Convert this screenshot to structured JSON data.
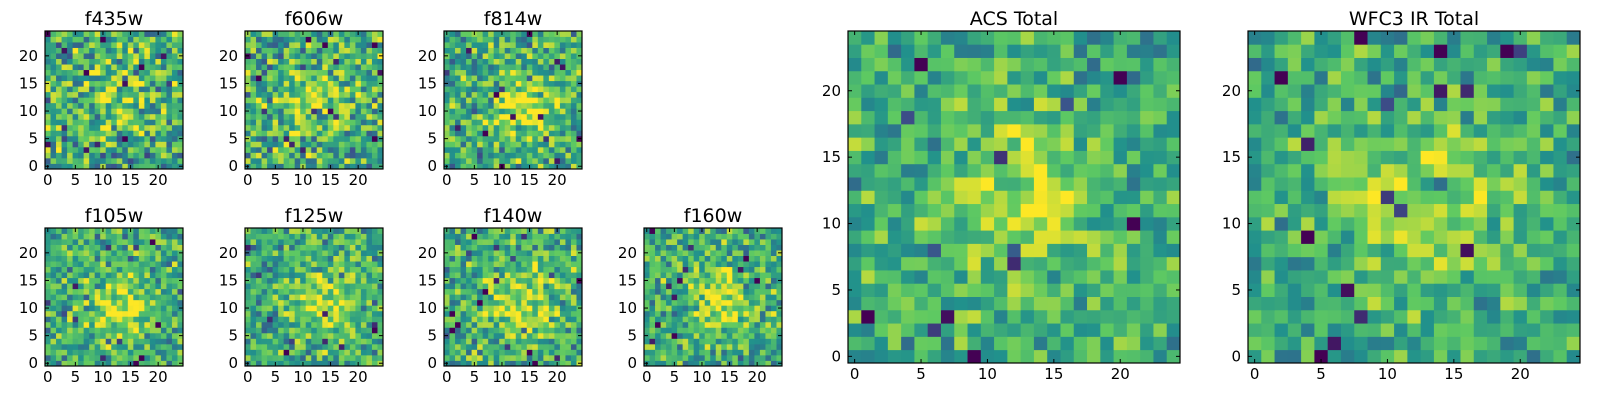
{
  "colors": {
    "colormap": [
      "#440154",
      "#3b528b",
      "#21918c",
      "#5ec962",
      "#fde725"
    ],
    "frame": "#000000",
    "background": "#ffffff"
  },
  "chart_data": [
    {
      "type": "heatmap",
      "title": "f435w",
      "cmap": "viridis",
      "grid": false,
      "xlim": [
        -0.5,
        24.5
      ],
      "ylim": [
        -0.5,
        24.5
      ],
      "x_ticks": [
        0,
        5,
        10,
        15,
        20
      ],
      "y_ticks": [
        0,
        5,
        10,
        15,
        20
      ],
      "nx": 25,
      "ny": 25,
      "noise": 0.62,
      "source": {
        "cx": 13,
        "cy": 13,
        "sigma": 5,
        "amp": 0.45
      },
      "seed": 11
    },
    {
      "type": "heatmap",
      "title": "f606w",
      "cmap": "viridis",
      "grid": false,
      "xlim": [
        -0.5,
        24.5
      ],
      "ylim": [
        -0.5,
        24.5
      ],
      "x_ticks": [
        0,
        5,
        10,
        15,
        20
      ],
      "y_ticks": [
        0,
        5,
        10,
        15,
        20
      ],
      "nx": 25,
      "ny": 25,
      "noise": 0.58,
      "source": {
        "cx": 13,
        "cy": 12,
        "sigma": 5,
        "amp": 0.6
      },
      "seed": 23
    },
    {
      "type": "heatmap",
      "title": "f814w",
      "cmap": "viridis",
      "grid": false,
      "xlim": [
        -0.5,
        24.5
      ],
      "ylim": [
        -0.5,
        24.5
      ],
      "x_ticks": [
        0,
        5,
        10,
        15,
        20
      ],
      "y_ticks": [
        0,
        5,
        10,
        15,
        20
      ],
      "nx": 25,
      "ny": 25,
      "noise": 0.55,
      "source": {
        "cx": 14,
        "cy": 11,
        "sigma": 4,
        "amp": 0.9
      },
      "seed": 37
    },
    {
      "type": "heatmap",
      "title": "f105w",
      "cmap": "viridis",
      "grid": false,
      "xlim": [
        -0.5,
        24.5
      ],
      "ylim": [
        -0.5,
        24.5
      ],
      "x_ticks": [
        0,
        5,
        10,
        15,
        20
      ],
      "y_ticks": [
        0,
        5,
        10,
        15,
        20
      ],
      "nx": 25,
      "ny": 25,
      "noise": 0.5,
      "source": {
        "cx": 14,
        "cy": 10,
        "sigma": 4,
        "amp": 0.9
      },
      "seed": 41
    },
    {
      "type": "heatmap",
      "title": "f125w",
      "cmap": "viridis",
      "grid": false,
      "xlim": [
        -0.5,
        24.5
      ],
      "ylim": [
        -0.5,
        24.5
      ],
      "x_ticks": [
        0,
        5,
        10,
        15,
        20
      ],
      "y_ticks": [
        0,
        5,
        10,
        15,
        20
      ],
      "nx": 25,
      "ny": 25,
      "noise": 0.5,
      "source": {
        "cx": 14,
        "cy": 11,
        "sigma": 4,
        "amp": 0.8
      },
      "seed": 53
    },
    {
      "type": "heatmap",
      "title": "f140w",
      "cmap": "viridis",
      "grid": false,
      "xlim": [
        -0.5,
        24.5
      ],
      "ylim": [
        -0.5,
        24.5
      ],
      "x_ticks": [
        0,
        5,
        10,
        15,
        20
      ],
      "y_ticks": [
        0,
        5,
        10,
        15,
        20
      ],
      "nx": 25,
      "ny": 25,
      "noise": 0.5,
      "source": {
        "cx": 13,
        "cy": 11,
        "sigma": 5,
        "amp": 0.8
      },
      "seed": 67
    },
    {
      "type": "heatmap",
      "title": "f160w",
      "cmap": "viridis",
      "grid": false,
      "xlim": [
        -0.5,
        24.5
      ],
      "ylim": [
        -0.5,
        24.5
      ],
      "x_ticks": [
        0,
        5,
        10,
        15,
        20
      ],
      "y_ticks": [
        0,
        5,
        10,
        15,
        20
      ],
      "nx": 25,
      "ny": 25,
      "noise": 0.5,
      "source": {
        "cx": 14,
        "cy": 11,
        "sigma": 4,
        "amp": 0.85
      },
      "seed": 79
    },
    {
      "type": "heatmap",
      "title": "ACS Total",
      "cmap": "viridis",
      "grid": false,
      "xlim": [
        -0.5,
        24.5
      ],
      "ylim": [
        -0.5,
        24.5
      ],
      "x_ticks": [
        0,
        5,
        10,
        15,
        20
      ],
      "y_ticks": [
        0,
        5,
        10,
        15,
        20
      ],
      "nx": 25,
      "ny": 25,
      "noise": 0.42,
      "source": {
        "cx": 13,
        "cy": 12,
        "sigma": 4,
        "amp": 0.75
      },
      "seed": 97
    },
    {
      "type": "heatmap",
      "title": "WFC3 IR Total",
      "cmap": "viridis",
      "grid": false,
      "xlim": [
        -0.5,
        24.5
      ],
      "ylim": [
        -0.5,
        24.5
      ],
      "x_ticks": [
        0,
        5,
        10,
        15,
        20
      ],
      "y_ticks": [
        0,
        5,
        10,
        15,
        20
      ],
      "nx": 25,
      "ny": 25,
      "noise": 0.4,
      "source": {
        "cx": 13,
        "cy": 12,
        "sigma": 4,
        "amp": 0.85
      },
      "seed": 113
    }
  ]
}
